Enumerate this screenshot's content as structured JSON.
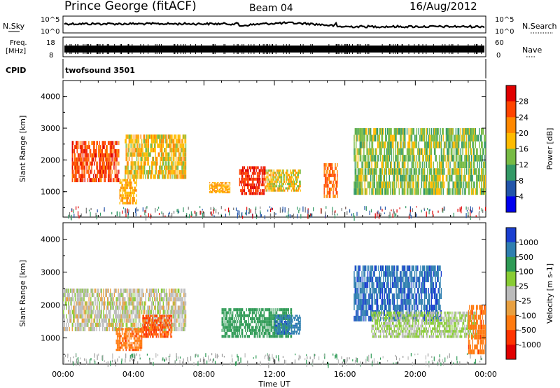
{
  "header": {
    "station": "Prince George (fitACF)",
    "beam": "Beam 04",
    "date": "16/Aug/2012"
  },
  "strips": {
    "nsky_label": "N.Sky",
    "nsky_ticks": [
      "10^5",
      "10^0"
    ],
    "nsearch_label": "N.Search",
    "nsearch_ticks": [
      "10^5",
      "10^0"
    ],
    "freq_label": [
      "Freq.",
      "[MHz]"
    ],
    "freq_ticks": [
      "18",
      "8"
    ],
    "nave_label": "Nave",
    "nave_ticks": [
      "60",
      "0"
    ],
    "cpid_label": "CPID",
    "cpid_value": "twofsound 3501"
  },
  "chart_data": [
    {
      "type": "heatmap",
      "name": "power",
      "ylabel": "Slant Range [km]",
      "xlabel": "Time UT",
      "xlim": [
        "00:00",
        "24:00"
      ],
      "ylim": [
        200,
        4500
      ],
      "x_ticks": [
        "00:00",
        "04:00",
        "08:00",
        "12:00",
        "16:00",
        "20:00",
        "00:00"
      ],
      "y_ticks": [
        1000,
        2000,
        3000,
        4000
      ],
      "colorbar": {
        "label": "Power [dB]",
        "ticks": [
          "28",
          "24",
          "20",
          "16",
          "12",
          "8",
          "4"
        ],
        "colors": [
          "#e00000",
          "#ff4400",
          "#ff8800",
          "#ffbb00",
          "#77bb44",
          "#339966",
          "#2255aa",
          "#0000ee"
        ]
      },
      "regions": [
        {
          "t": [
            0.5,
            3.2
          ],
          "r": [
            1300,
            2600
          ],
          "level": 24
        },
        {
          "t": [
            3.2,
            4.2
          ],
          "r": [
            600,
            1400
          ],
          "level": 18
        },
        {
          "t": [
            3.5,
            7.0
          ],
          "r": [
            1400,
            2800
          ],
          "level": 16
        },
        {
          "t": [
            8.3,
            9.5
          ],
          "r": [
            950,
            1300
          ],
          "level": 18
        },
        {
          "t": [
            10.0,
            11.5
          ],
          "r": [
            900,
            1800
          ],
          "level": 26
        },
        {
          "t": [
            11.5,
            13.5
          ],
          "r": [
            1000,
            1700
          ],
          "level": 16
        },
        {
          "t": [
            14.8,
            15.6
          ],
          "r": [
            800,
            1900
          ],
          "level": 22
        },
        {
          "t": [
            16.5,
            24.0
          ],
          "r": [
            900,
            3000
          ],
          "level": 12
        }
      ]
    },
    {
      "type": "heatmap",
      "name": "velocity",
      "ylabel": "Slant Range [km]",
      "xlabel": "Time UT",
      "xlim": [
        "00:00",
        "24:00"
      ],
      "ylim": [
        200,
        4500
      ],
      "x_ticks": [
        "00:00",
        "04:00",
        "08:00",
        "12:00",
        "16:00",
        "20:00",
        "00:00"
      ],
      "y_ticks": [
        1000,
        2000,
        3000,
        4000
      ],
      "colorbar": {
        "label": "Velocity [m s-1]",
        "ticks": [
          "1000",
          "500",
          "100",
          "25",
          "-25",
          "-100",
          "-500",
          "-1000"
        ],
        "colors": [
          "#1a3fd0",
          "#2f7fb0",
          "#2e9a55",
          "#88cc33",
          "#bbbbbb",
          "#e8a040",
          "#ff7a10",
          "#ff3300",
          "#e00000"
        ]
      },
      "regions": [
        {
          "t": [
            0.0,
            7.0
          ],
          "r": [
            1200,
            2500
          ],
          "level": 0
        },
        {
          "t": [
            3.0,
            4.5
          ],
          "r": [
            600,
            1300
          ],
          "level": -400
        },
        {
          "t": [
            4.5,
            6.2
          ],
          "r": [
            1000,
            1700
          ],
          "level": -500
        },
        {
          "t": [
            9.0,
            13.0
          ],
          "r": [
            1000,
            1900
          ],
          "level": 150
        },
        {
          "t": [
            12.0,
            13.5
          ],
          "r": [
            1100,
            1700
          ],
          "level": 800
        },
        {
          "t": [
            16.5,
            21.5
          ],
          "r": [
            1500,
            3200
          ],
          "level": 900
        },
        {
          "t": [
            17.5,
            23.5
          ],
          "r": [
            1000,
            1800
          ],
          "level": 30
        },
        {
          "t": [
            23.0,
            24.0
          ],
          "r": [
            500,
            2000
          ],
          "level": -400
        }
      ]
    }
  ]
}
